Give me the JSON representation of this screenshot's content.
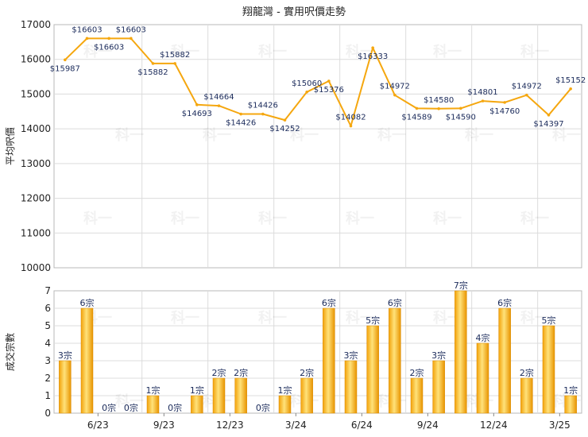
{
  "title": "翔龍灣 - 實用呎價走勢",
  "watermark": "科一",
  "chart_data": [
    {
      "type": "line",
      "ylabel": "平均呎價",
      "ylim": [
        10000,
        17000
      ],
      "yticks": [
        10000,
        11000,
        12000,
        13000,
        14000,
        15000,
        16000,
        17000
      ],
      "line_color": "#f5a70f",
      "grid": true,
      "values": [
        15987,
        16603,
        16603,
        16603,
        15882,
        15882,
        14693,
        14664,
        14426,
        14426,
        14252,
        15060,
        15376,
        14082,
        16333,
        14972,
        14589,
        14580,
        14590,
        14801,
        14760,
        14972,
        14397,
        15152
      ],
      "labels": [
        "$15987",
        "$16603",
        "$16603",
        "$16603",
        "$15882",
        "$15882",
        "$14693",
        "$14664",
        "$14426",
        "$14426",
        "$14252",
        "$15060",
        "$15376",
        "$14082",
        "$16333",
        "$14972",
        "$14589",
        "$14580",
        "$14590",
        "$14801",
        "$14760",
        "$14972",
        "$14397",
        "$15152"
      ]
    },
    {
      "type": "bar",
      "ylabel": "成交宗數",
      "ylim": [
        0,
        7
      ],
      "yticks": [
        0,
        1,
        2,
        3,
        4,
        5,
        6,
        7
      ],
      "bar_color": "#f5a70f",
      "grid": true,
      "values": [
        3,
        6,
        0,
        0,
        1,
        0,
        1,
        2,
        2,
        0,
        1,
        2,
        6,
        3,
        5,
        6,
        2,
        3,
        7,
        4,
        6,
        2,
        5,
        1
      ],
      "labels": [
        "3宗",
        "6宗",
        "0宗",
        "0宗",
        "1宗",
        "0宗",
        "1宗",
        "2宗",
        "2宗",
        "0宗",
        "1宗",
        "2宗",
        "6宗",
        "3宗",
        "5宗",
        "6宗",
        "2宗",
        "3宗",
        "7宗",
        "4宗",
        "6宗",
        "2宗",
        "5宗",
        "1宗"
      ],
      "x_tick_labels": [
        "6/23",
        "9/23",
        "12/23",
        "3/24",
        "6/24",
        "9/24",
        "12/24",
        "3/25"
      ]
    }
  ]
}
